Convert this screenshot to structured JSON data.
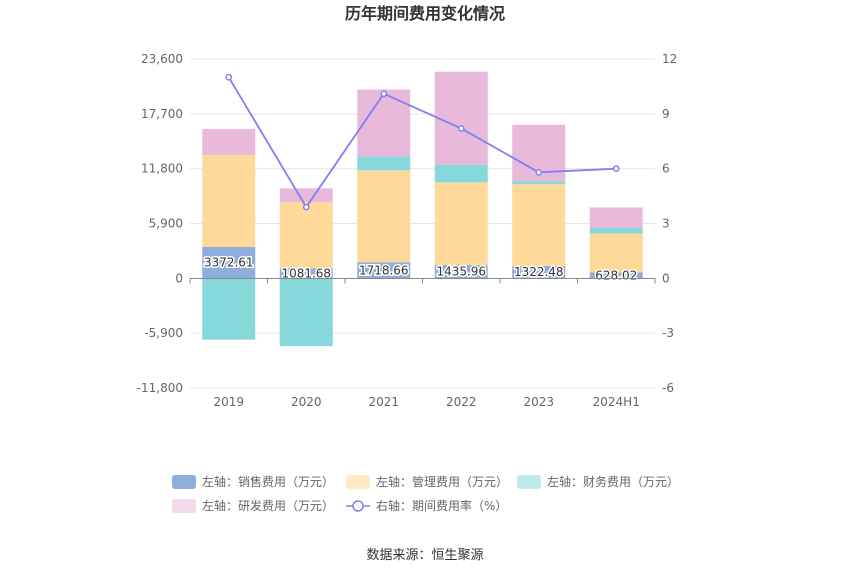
{
  "chart_data": {
    "type": "bar",
    "title": "历年期间费用变化情况",
    "source": "数据来源：恒生聚源",
    "categories": [
      "2019",
      "2020",
      "2021",
      "2022",
      "2023",
      "2024H1"
    ],
    "left_axis": {
      "ticks": [
        "23,600",
        "17,700",
        "11,800",
        "5,900",
        "0",
        "-5,900",
        "-11,800"
      ],
      "ylim": [
        -11800,
        23600
      ]
    },
    "right_axis": {
      "ticks": [
        "12",
        "9",
        "6",
        "3",
        "0",
        "-3",
        "-6"
      ],
      "ylim": [
        -6,
        12
      ]
    },
    "series": [
      {
        "name": "左轴：销售费用（万元）",
        "type": "bar",
        "color": "#8eaedc",
        "values": [
          3372.61,
          1081.68,
          1718.66,
          1435.96,
          1322.48,
          628.02
        ],
        "labels": [
          "3372.61",
          "1081.68",
          "1718.66",
          "1435.96",
          "1322.48",
          "628.02"
        ]
      },
      {
        "name": "左轴：管理费用（万元）",
        "type": "bar",
        "color": "#ffd99a",
        "values": [
          9900,
          7100,
          9900,
          8900,
          8800,
          4200
        ]
      },
      {
        "name": "左轴：财务费用（万元）",
        "type": "bar",
        "color": "#86d8db",
        "values": [
          -6600,
          -7300,
          1500,
          1900,
          300,
          600
        ]
      },
      {
        "name": "左轴：研发费用（万元）",
        "type": "bar",
        "color": "#e8b9da",
        "values": [
          2800,
          1500,
          7200,
          10000,
          6100,
          2200
        ]
      },
      {
        "name": "右轴：期间费用率（%）",
        "type": "line",
        "color": "#8080f0",
        "values": [
          11.0,
          3.9,
          10.1,
          8.2,
          5.8,
          6.0
        ]
      }
    ]
  }
}
